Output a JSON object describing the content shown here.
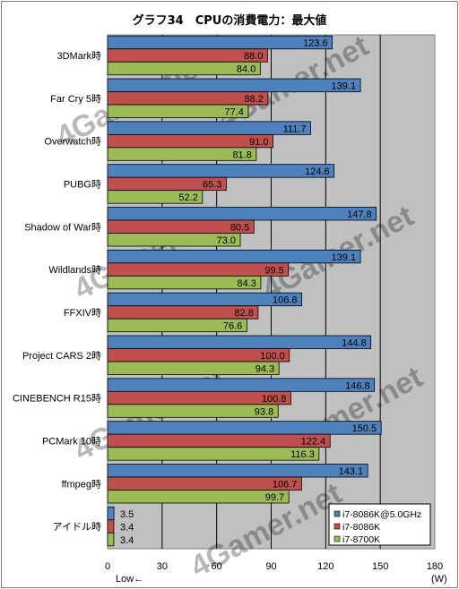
{
  "chart_data": {
    "type": "bar",
    "orientation": "horizontal",
    "title": "グラフ34　CPUの消費電力：最大値",
    "categories": [
      "3DMark時",
      "Far Cry 5時",
      "Overwatch時",
      "PUBG時",
      "Shadow of War時",
      "Wildlands時",
      "FFXIV時",
      "Project CARS 2時",
      "CINEBENCH R15時",
      "PCMark 10時",
      "ffmpeg時",
      "アイドル時"
    ],
    "series": [
      {
        "name": "i7-8086K@5.0GHz",
        "color": "#4f81bd",
        "values": [
          123.6,
          139.1,
          111.7,
          124.6,
          147.8,
          139.1,
          106.8,
          144.8,
          146.8,
          150.5,
          143.1,
          3.5
        ]
      },
      {
        "name": "i7-8086K",
        "color": "#c0504d",
        "values": [
          88.0,
          88.2,
          91.0,
          65.3,
          80.5,
          99.5,
          82.8,
          100.0,
          100.8,
          122.4,
          106.7,
          3.4
        ]
      },
      {
        "name": "i7-8700K",
        "color": "#9bbb59",
        "values": [
          84.0,
          77.4,
          81.8,
          52.2,
          73.0,
          84.3,
          76.6,
          94.3,
          93.8,
          116.3,
          99.7,
          3.4
        ]
      }
    ],
    "xlim": [
      0,
      180
    ],
    "xticks": [
      0,
      30,
      60,
      90,
      120,
      150,
      180
    ],
    "xlabel_left": "Low←",
    "xunit": "(W)",
    "grid": true,
    "legend_position": "bottom-right",
    "watermark": "4Gamer.net"
  }
}
